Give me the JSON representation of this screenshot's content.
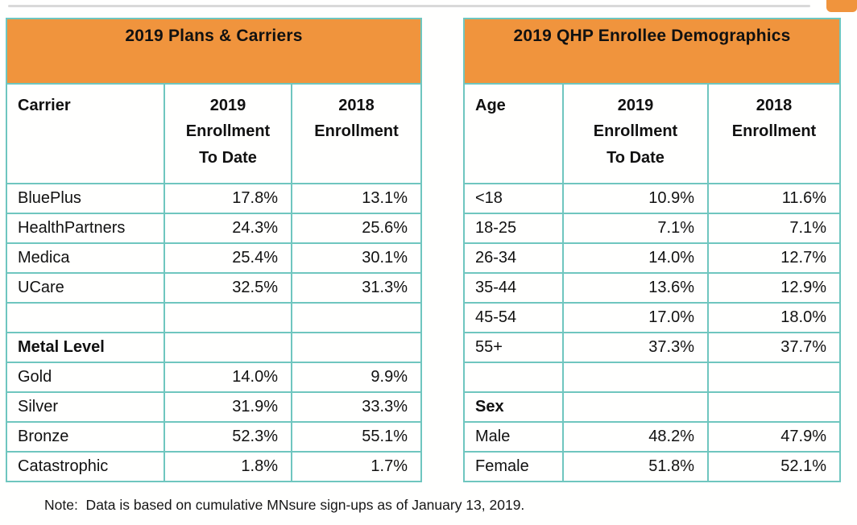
{
  "page": {
    "note": "Note:  Data is based on cumulative MNsure sign-ups as of January 13, 2019.",
    "accent_orange": "#f0943d",
    "border_teal": "#6fc6bf",
    "topline_gray": "#d9d9d9"
  },
  "tables": [
    {
      "title": "2019 Plans & Carriers",
      "columns": [
        "Carrier",
        "2019\nEnrollment\nTo Date",
        "2018\nEnrollment"
      ],
      "rows": [
        {
          "cells": [
            "BluePlus",
            "17.8%",
            "13.1%"
          ],
          "section": false
        },
        {
          "cells": [
            "HealthPartners",
            "24.3%",
            "25.6%"
          ],
          "section": false
        },
        {
          "cells": [
            "Medica",
            "25.4%",
            "30.1%"
          ],
          "section": false
        },
        {
          "cells": [
            "UCare",
            "32.5%",
            "31.3%"
          ],
          "section": false
        },
        {
          "cells": [
            "",
            "",
            ""
          ],
          "section": false
        },
        {
          "cells": [
            "Metal Level",
            "",
            ""
          ],
          "section": true
        },
        {
          "cells": [
            "Gold",
            "14.0%",
            "9.9%"
          ],
          "section": false
        },
        {
          "cells": [
            "Silver",
            "31.9%",
            "33.3%"
          ],
          "section": false
        },
        {
          "cells": [
            "Bronze",
            "52.3%",
            "55.1%"
          ],
          "section": false
        },
        {
          "cells": [
            "Catastrophic",
            "1.8%",
            "1.7%"
          ],
          "section": false
        }
      ]
    },
    {
      "title": "2019 QHP Enrollee Demographics",
      "columns": [
        "Age",
        "2019\nEnrollment\nTo Date",
        "2018\nEnrollment"
      ],
      "rows": [
        {
          "cells": [
            "<18",
            "10.9%",
            "11.6%"
          ],
          "section": false
        },
        {
          "cells": [
            "18-25",
            "7.1%",
            "7.1%"
          ],
          "section": false
        },
        {
          "cells": [
            "26-34",
            "14.0%",
            "12.7%"
          ],
          "section": false
        },
        {
          "cells": [
            "35-44",
            "13.6%",
            "12.9%"
          ],
          "section": false
        },
        {
          "cells": [
            "45-54",
            "17.0%",
            "18.0%"
          ],
          "section": false
        },
        {
          "cells": [
            "55+",
            "37.3%",
            "37.7%"
          ],
          "section": false
        },
        {
          "cells": [
            "",
            "",
            ""
          ],
          "section": false
        },
        {
          "cells": [
            "Sex",
            "",
            ""
          ],
          "section": true
        },
        {
          "cells": [
            "Male",
            "48.2%",
            "47.9%"
          ],
          "section": false
        },
        {
          "cells": [
            "Female",
            "51.8%",
            "52.1%"
          ],
          "section": false
        }
      ]
    }
  ],
  "chart_data": [
    {
      "type": "table",
      "title": "2019 Plans & Carriers",
      "columns": [
        "Carrier",
        "2019 Enrollment To Date",
        "2018 Enrollment"
      ],
      "rows": [
        [
          "BluePlus",
          "17.8%",
          "13.1%"
        ],
        [
          "HealthPartners",
          "24.3%",
          "25.6%"
        ],
        [
          "Medica",
          "25.4%",
          "30.1%"
        ],
        [
          "UCare",
          "32.5%",
          "31.3%"
        ],
        [
          "Metal Level",
          "",
          ""
        ],
        [
          "Gold",
          "14.0%",
          "9.9%"
        ],
        [
          "Silver",
          "31.9%",
          "33.3%"
        ],
        [
          "Bronze",
          "52.3%",
          "55.1%"
        ],
        [
          "Catastrophic",
          "1.8%",
          "1.7%"
        ]
      ]
    },
    {
      "type": "table",
      "title": "2019 QHP Enrollee Demographics",
      "columns": [
        "Age",
        "2019 Enrollment To Date",
        "2018 Enrollment"
      ],
      "rows": [
        [
          "<18",
          "10.9%",
          "11.6%"
        ],
        [
          "18-25",
          "7.1%",
          "7.1%"
        ],
        [
          "26-34",
          "14.0%",
          "12.7%"
        ],
        [
          "35-44",
          "13.6%",
          "12.9%"
        ],
        [
          "45-54",
          "17.0%",
          "18.0%"
        ],
        [
          "55+",
          "37.3%",
          "37.7%"
        ],
        [
          "Sex",
          "",
          ""
        ],
        [
          "Male",
          "48.2%",
          "47.9%"
        ],
        [
          "Female",
          "51.8%",
          "52.1%"
        ]
      ]
    }
  ]
}
